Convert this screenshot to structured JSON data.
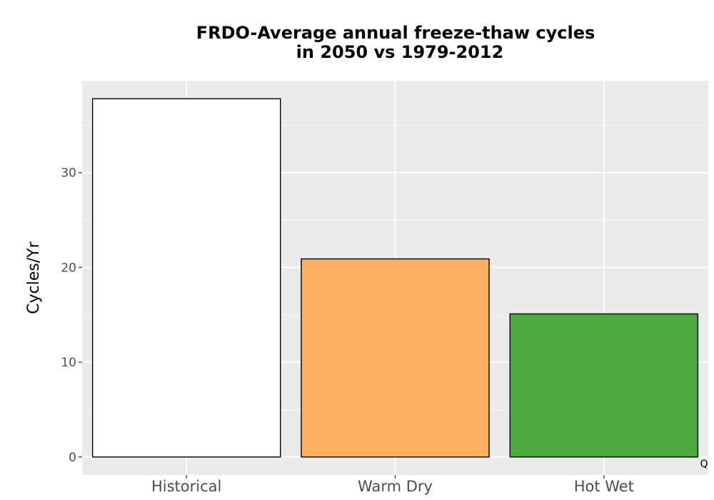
{
  "chart_data": {
    "type": "bar",
    "title_lines": [
      "FRDO-Average annual freeze-thaw cycles",
      "in 2050 vs 1979-2012"
    ],
    "xlabel": "",
    "ylabel": "Cycles/Yr",
    "categories": [
      "Historical",
      "Warm Dry",
      "Hot Wet"
    ],
    "values": [
      37.8,
      20.9,
      15.1
    ],
    "bar_colors": [
      "#ffffff",
      "#fdae61",
      "#4dac3f"
    ],
    "bar_outline": "#000000",
    "panel_background": "#ebebeb",
    "gridline_color": "#ffffff",
    "ylim": [
      -1.9,
      39.7
    ],
    "yticks": [
      0,
      10,
      20,
      30
    ],
    "ytick_labels": [
      "0",
      "10",
      "20",
      "30"
    ],
    "grid": true,
    "legend": "none",
    "corner_mark": "Q"
  }
}
